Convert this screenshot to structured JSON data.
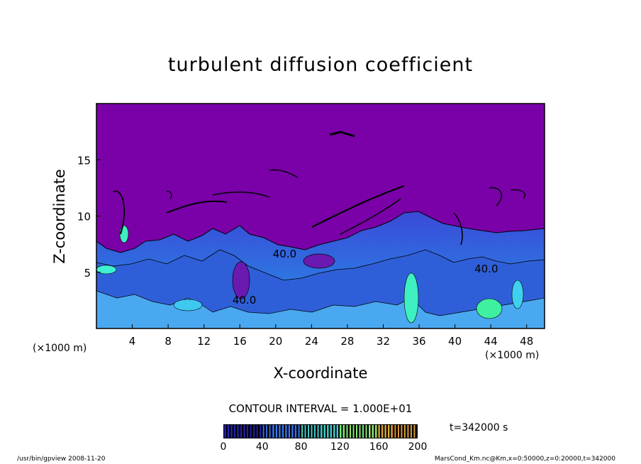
{
  "chart_data": {
    "type": "heatmap",
    "title": "turbulent diffusion coefficient",
    "xlabel": "X-coordinate",
    "ylabel": "Z-coordinate",
    "x_unit_left": "(×1000 m)",
    "x_unit_right": "(×1000 m)",
    "xlim": [
      0,
      50
    ],
    "ylim": [
      0,
      20
    ],
    "xticks": [
      "4",
      "8",
      "12",
      "16",
      "20",
      "24",
      "28",
      "32",
      "36",
      "40",
      "44",
      "48"
    ],
    "xtick_values": [
      4,
      8,
      12,
      16,
      20,
      24,
      28,
      32,
      36,
      40,
      44,
      48
    ],
    "yticks": [
      "5",
      "10",
      "15"
    ],
    "ytick_values": [
      5,
      10,
      15
    ],
    "contour_labels": [
      {
        "text": "40.0",
        "x": 16.5,
        "z": 2.2
      },
      {
        "text": "40.0",
        "x": 21,
        "z": 6.3
      },
      {
        "text": "40.0",
        "x": 43.5,
        "z": 5.0
      }
    ],
    "contour_interval": "CONTOUR INTERVAL = 1.000E+01",
    "colorbar": {
      "min": 0,
      "max": 200,
      "ticks": [
        "0",
        "40",
        "80",
        "120",
        "160",
        "200"
      ],
      "tick_values": [
        0,
        40,
        80,
        120,
        160,
        200
      ],
      "colors": [
        "#1a0066",
        "#2a3cd6",
        "#3fa2f0",
        "#3ff0a0",
        "#d0e040",
        "#e05030"
      ]
    },
    "background_color": "#7a00a8",
    "time_label": "t=342000 s",
    "footer_left": "/usr/bin/gpview   2008-11-20",
    "footer_right": "MarsCond_Km.nc@Km,x=0:50000,z=0:20000,t=342000"
  }
}
